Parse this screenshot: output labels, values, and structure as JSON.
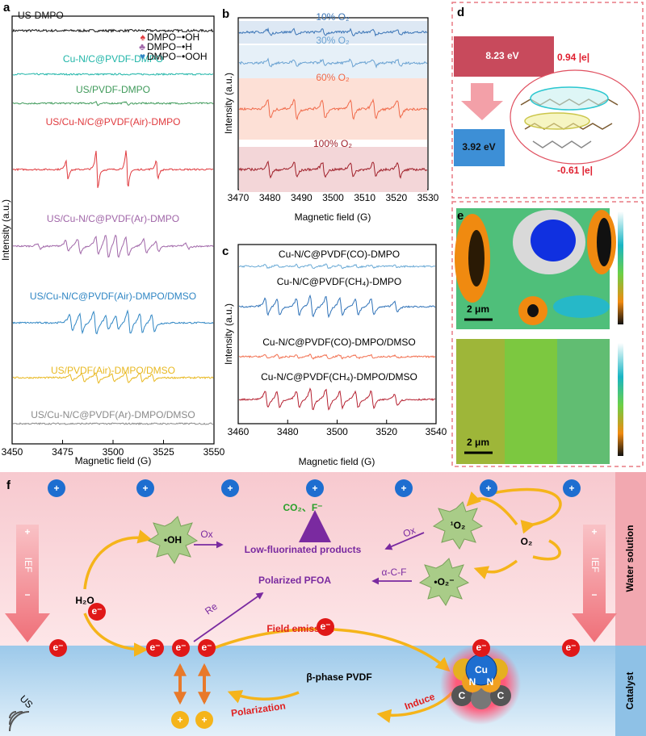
{
  "panels": {
    "a": {
      "label": "a",
      "ylabel": "Intensity (a.u.)",
      "xlabel": "Magnetic field (G)",
      "xticks": [
        3450,
        3475,
        3500,
        3525,
        3550
      ],
      "traces": [
        {
          "name": "US-DMPO",
          "color": "#111111"
        },
        {
          "name": "Cu-N/C@PVDF-DMPO",
          "color": "#1fb5a8"
        },
        {
          "name": "US/PVDF-DMPO",
          "color": "#3f9a5a"
        },
        {
          "name": "US/Cu-N/C@PVDF(Air)-DMPO",
          "color": "#e03a3e"
        },
        {
          "name": "US/Cu-N/C@PVDF(Ar)-DMPO",
          "color": "#a066a8"
        },
        {
          "name": "US/Cu-N/C@PVDF(Air)-DMPO/DMSO",
          "color": "#2f86c4"
        },
        {
          "name": "US/PVDF(Air)-DMPO/DMSO",
          "color": "#e8b820"
        },
        {
          "name": "US/Cu-N/C@PVDF(Ar)-DMPO/DMSO",
          "color": "#8a8a8a"
        }
      ],
      "legend": [
        {
          "marker": "♠",
          "name": "DMPO−•OH",
          "color": "#e03a3e"
        },
        {
          "marker": "♣",
          "name": "DMPO−•H",
          "color": "#a066a8"
        },
        {
          "marker": "♥",
          "name": "DMPO−•OOH",
          "color": "#2f86c4"
        }
      ]
    },
    "b": {
      "label": "b",
      "ylabel": "Intensity (a.u.)",
      "xlabel": "Magnetic field (G)",
      "xticks": [
        3470,
        3480,
        3490,
        3500,
        3510,
        3520,
        3530
      ],
      "traces": [
        {
          "name": "10% O₂",
          "color": "#3a74b6",
          "band": "#dde8f4"
        },
        {
          "name": "30% O₂",
          "color": "#6aa2d2",
          "band": "#e6f0f8"
        },
        {
          "name": "60% O₂",
          "color": "#f06a4a",
          "band": "#fde0d6"
        },
        {
          "name": "100% O₂",
          "color": "#a0202a",
          "band": "#f3d6d8"
        }
      ]
    },
    "c": {
      "label": "c",
      "ylabel": "Intensity (a.u.)",
      "xlabel": "Magnetic field (G)",
      "xticks": [
        3460,
        3480,
        3500,
        3520,
        3540
      ],
      "traces": [
        {
          "name": "Cu-N/C@PVDF(CO)-DMPO",
          "color": "#6aaad6"
        },
        {
          "name": "Cu-N/C@PVDF(CH₄)-DMPO",
          "color": "#2f72b8"
        },
        {
          "name": "Cu-N/C@PVDF(CO)-DMPO/DMSO",
          "color": "#f27050"
        },
        {
          "name": "Cu-N/C@PVDF(CH₄)-DMPO/DMSO",
          "color": "#b52030"
        }
      ]
    },
    "d": {
      "label": "d",
      "energy_high": "8.23 eV",
      "energy_low": "3.92 eV",
      "charge_pos": "0.94 |e|",
      "charge_neg": "-0.61 |e|"
    },
    "e": {
      "label": "e",
      "scale_bar": "2 μm"
    },
    "f": {
      "label": "f",
      "water": "Water solution",
      "catalyst": "Catalyst",
      "oh": "•OH",
      "ox": "Ox",
      "singlet": "¹O₂",
      "superoxide": "•O₂⁻",
      "o2": "O₂",
      "h2o": "H₂O",
      "products": "Low-fluorinated products",
      "co2": "CO₂、F⁻",
      "pfoa": "Polarized PFOA",
      "acf": "α-C-F",
      "re": "Re",
      "field_emission": "Field emission",
      "electron": "e⁻",
      "plus": "+",
      "minus": "−",
      "ief": "IEF",
      "cu": "Cu",
      "n": "N",
      "c": "C",
      "pvdf": "β-phase PVDF",
      "polarization": "Polarization",
      "induce": "Induce",
      "us": "US"
    }
  }
}
